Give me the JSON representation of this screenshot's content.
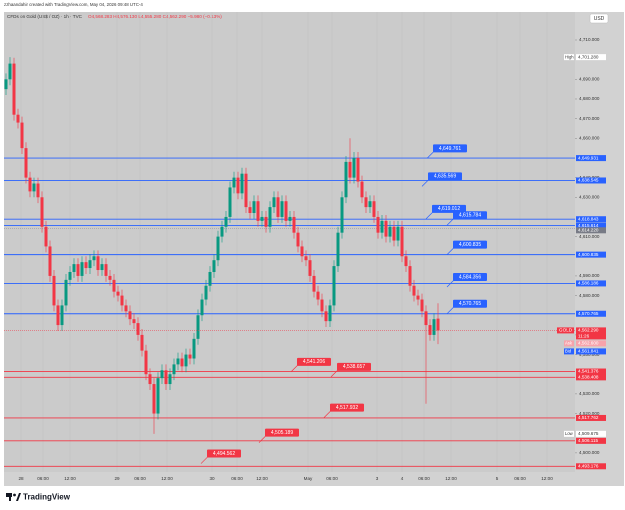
{
  "chart_data": {
    "type": "candlestick",
    "credit": "zzhaandahir created with TradingView.com, May 04, 2026 09:48 UTC-4",
    "title": "CFDs on Gold (US$ / OZ) · 1h · TVC",
    "ohlc_text": "O4,568.283 H4,576.130 L4,555.280 C4,562.290 −5.980 (−0.13%)",
    "currency": "USD",
    "brand": "TradingView",
    "up_color": "#089981",
    "down_color": "#f23645",
    "ylim": [
      4490.27,
      4724.24
    ],
    "yticks": [
      {
        "value": 4710,
        "label": "4,710.000"
      },
      {
        "value": 4690,
        "label": "4,690.000"
      },
      {
        "value": 4680,
        "label": "4,680.000"
      },
      {
        "value": 4670,
        "label": "4,670.000"
      },
      {
        "value": 4660,
        "label": "4,660.000"
      },
      {
        "value": 4640,
        "label": "4,640.000"
      },
      {
        "value": 4630,
        "label": "4,630.000"
      },
      {
        "value": 4610,
        "label": "4,610.000"
      },
      {
        "value": 4590,
        "label": "4,590.000"
      },
      {
        "value": 4580,
        "label": "4,580.000"
      },
      {
        "value": 4560,
        "label": "4,560.000"
      },
      {
        "value": 4550,
        "label": "4,550.000"
      },
      {
        "value": 4530,
        "label": "4,530.000"
      },
      {
        "value": 4520,
        "label": "4,520.000"
      },
      {
        "value": 4500,
        "label": "4,500.000"
      }
    ],
    "xticks": [
      "28",
      "06:00",
      "12:00",
      "29",
      "06:00",
      "12:00",
      "30",
      "06:00",
      "12:00",
      "May",
      "06:00",
      "3",
      "4",
      "06:00",
      "12:00",
      "5",
      "06:00",
      "12:00"
    ],
    "open": [
      4685,
      4690,
      4698,
      4672,
      4668,
      4655,
      4640,
      4633,
      4637,
      4630,
      4615,
      4605,
      4590,
      4575,
      4565,
      4575,
      4588,
      4592,
      4596,
      4590,
      4597,
      4594,
      4598,
      4600,
      4593,
      4596,
      4590,
      4588,
      4582,
      4580,
      4575,
      4572,
      4568,
      4566,
      4560,
      4552,
      4540,
      4535,
      4520,
      4538,
      4542,
      4535,
      4540,
      4545,
      4548,
      4544,
      4550,
      4548,
      4558,
      4570,
      4578,
      4585,
      4592,
      4598,
      4610,
      4615,
      4620,
      4635,
      4640,
      4632,
      4642,
      4625,
      4622,
      4628,
      4618,
      4620,
      4615,
      4625,
      4630,
      4620,
      4628,
      4618,
      4620,
      4612,
      4605,
      4600,
      4598,
      4590,
      4582,
      4578,
      4572,
      4567,
      4575,
      4595,
      4612,
      4630,
      4648,
      4640,
      4650,
      4638,
      4630,
      4625,
      4628,
      4620,
      4612,
      4618,
      4610,
      4615,
      4608,
      4615,
      4600,
      4595,
      4585,
      4580,
      4578,
      4572,
      4565,
      4560,
      4568.283
    ],
    "high": [
      4693,
      4701.28,
      4701,
      4675,
      4671,
      4658,
      4643,
      4640,
      4640,
      4633,
      4618,
      4608,
      4593,
      4578,
      4578,
      4591,
      4595,
      4599,
      4599,
      4600,
      4600,
      4601,
      4603,
      4603,
      4599,
      4599,
      4593,
      4591,
      4585,
      4583,
      4578,
      4575,
      4571,
      4569,
      4563,
      4555,
      4543,
      4538,
      4541,
      4545,
      4545,
      4543,
      4548,
      4551,
      4551,
      4553,
      4553,
      4561,
      4573,
      4581,
      4588,
      4595,
      4601,
      4613,
      4618,
      4623,
      4638,
      4643,
      4643,
      4645,
      4645,
      4628,
      4631,
      4631,
      4623,
      4623,
      4628,
      4633,
      4633,
      4631,
      4631,
      4623,
      4623,
      4615,
      4608,
      4603,
      4601,
      4593,
      4585,
      4581,
      4575,
      4578,
      4598,
      4615,
      4633,
      4651,
      4660,
      4653,
      4653,
      4641,
      4633,
      4631,
      4631,
      4623,
      4621,
      4621,
      4618,
      4618,
      4618,
      4618,
      4603,
      4598,
      4588,
      4583,
      4581,
      4575,
      4568,
      4571,
      4576.13
    ],
    "low": [
      4682,
      4687,
      4669,
      4665,
      4652,
      4637,
      4630,
      4630,
      4627,
      4612,
      4602,
      4587,
      4572,
      4562,
      4562,
      4572,
      4585,
      4589,
      4587,
      4587,
      4591,
      4591,
      4595,
      4590,
      4590,
      4587,
      4585,
      4579,
      4577,
      4572,
      4569,
      4565,
      4563,
      4557,
      4549,
      4537,
      4532,
      4509.675,
      4517,
      4535,
      4532,
      4532,
      4537,
      4542,
      4541,
      4541,
      4545,
      4545,
      4555,
      4567,
      4575,
      4582,
      4589,
      4595,
      4607,
      4612,
      4617,
      4632,
      4629,
      4629,
      4622,
      4619,
      4619,
      4615,
      4615,
      4612,
      4612,
      4622,
      4617,
      4617,
      4615,
      4615,
      4609,
      4602,
      4597,
      4595,
      4587,
      4579,
      4575,
      4569,
      4564,
      4564,
      4572,
      4592,
      4609,
      4627,
      4637,
      4637,
      4635,
      4627,
      4622,
      4622,
      4617,
      4609,
      4609,
      4607,
      4607,
      4605,
      4605,
      4597,
      4592,
      4582,
      4577,
      4575,
      4569,
      4525,
      4557,
      4557,
      4555.28
    ],
    "close": [
      4690,
      4698,
      4672,
      4668,
      4655,
      4640,
      4633,
      4637,
      4630,
      4615,
      4605,
      4590,
      4575,
      4565,
      4575,
      4588,
      4592,
      4596,
      4590,
      4597,
      4594,
      4598,
      4600,
      4593,
      4596,
      4590,
      4588,
      4582,
      4580,
      4575,
      4572,
      4568,
      4566,
      4560,
      4552,
      4540,
      4535,
      4520,
      4538,
      4542,
      4535,
      4540,
      4545,
      4548,
      4544,
      4550,
      4548,
      4558,
      4570,
      4578,
      4585,
      4592,
      4598,
      4610,
      4615,
      4620,
      4635,
      4640,
      4632,
      4642,
      4625,
      4622,
      4628,
      4618,
      4620,
      4615,
      4625,
      4630,
      4620,
      4628,
      4618,
      4620,
      4612,
      4605,
      4600,
      4598,
      4590,
      4582,
      4578,
      4572,
      4567,
      4575,
      4595,
      4612,
      4630,
      4648,
      4640,
      4650,
      4638,
      4630,
      4625,
      4628,
      4620,
      4612,
      4618,
      4610,
      4615,
      4608,
      4615,
      4600,
      4595,
      4585,
      4580,
      4578,
      4572,
      4565,
      4560,
      4568,
      4562.29
    ],
    "levels": [
      {
        "color": "#2962ff",
        "price": {
          "value": 4649.931,
          "label": "4,649.931"
        },
        "callout": {
          "value": 4649.761,
          "label": "4,649.761"
        }
      },
      {
        "color": "#2962ff",
        "price": {
          "value": 4638.545,
          "label": "4,638.545"
        },
        "callout": {
          "value": 4635.569,
          "label": "4,635.569"
        }
      },
      {
        "color": "#2962ff",
        "price": {
          "value": 4618.843,
          "label": "4,618.843"
        },
        "callout": {
          "value": 4619.012,
          "label": "4,619.012"
        }
      },
      {
        "color": "#2962ff",
        "price": {
          "value": 4615.614,
          "label": "4,615.614"
        },
        "callout": {
          "value": 4615.784,
          "label": "4,615.784"
        }
      },
      {
        "color": "#2962ff",
        "price": {
          "value": 4600.835,
          "label": "4,600.835"
        },
        "callout": {
          "value": 4600.835,
          "label": "4,600.835"
        }
      },
      {
        "color": "#2962ff",
        "price": {
          "value": 4586.186,
          "label": "4,586.186"
        },
        "callout": {
          "value": 4584.356,
          "label": "4,584.356"
        }
      },
      {
        "color": "#2962ff",
        "price": {
          "value": 4570.765,
          "label": "4,570.765"
        },
        "callout": {
          "value": 4570.765,
          "label": "4,570.765"
        }
      },
      {
        "color": "#f23645",
        "price": {
          "value": 4541.376,
          "label": "4,541.376"
        },
        "callout": {
          "value": 4541.206,
          "label": "4,541.206"
        }
      },
      {
        "color": "#f23645",
        "price": {
          "value": 4538.408,
          "label": "4,538.408"
        },
        "callout": {
          "value": 4538.657,
          "label": "4,538.657"
        }
      },
      {
        "color": "#f23645",
        "price": {
          "value": 4517.762,
          "label": "4,517.762"
        },
        "callout": {
          "value": 4517.932,
          "label": "4,517.932"
        }
      },
      {
        "color": "#f23645",
        "price": {
          "value": 4506.115,
          "label": "4,506.115"
        },
        "callout": {
          "value": 4505.189,
          "label": "4,505.189"
        }
      },
      {
        "color": "#f23645",
        "price": {
          "value": 4493.176,
          "label": "4,493.176"
        },
        "callout": {
          "value": 4494.562,
          "label": "4,494.562"
        }
      }
    ],
    "marker": {
      "color": "#787b86",
      "value": 4614.22,
      "label": "4,614.220"
    },
    "last": {
      "name": "GOLD",
      "value": 4562.29,
      "label": "4,562.290",
      "countdown": "11:26"
    },
    "ask": {
      "name": "Ask",
      "value": 4562.6,
      "label": "4,562.600"
    },
    "bid": {
      "name": "Bid",
      "value": 4561.841,
      "label": "4,561.841"
    },
    "high_mark": {
      "name": "High",
      "value": 4701.28,
      "label": "4,701.280"
    },
    "low_mark": {
      "name": "Low",
      "value": 4509.675,
      "label": "4,509.675"
    }
  }
}
